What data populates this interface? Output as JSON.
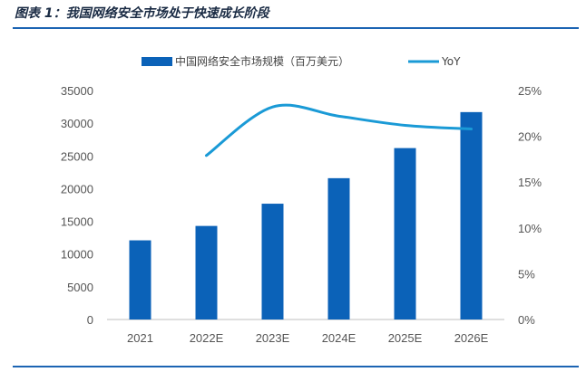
{
  "figure": {
    "title": "图表 1：我国网络安全市场处于快速成长阶段"
  },
  "colors": {
    "bar": "#0b62b8",
    "line": "#1a9ad6",
    "rule": "#1c64b3"
  },
  "chart_data": {
    "type": "bar",
    "categories": [
      "2021",
      "2022E",
      "2023E",
      "2024E",
      "2025E",
      "2026E"
    ],
    "series": [
      {
        "name": "中国网络安全市场规模（百万美元）",
        "type": "bar",
        "axis": "left",
        "values": [
          12100,
          14300,
          17700,
          21600,
          26200,
          31700
        ]
      },
      {
        "name": "YoY",
        "type": "line",
        "axis": "right",
        "values": [
          null,
          0.179,
          0.232,
          0.222,
          0.212,
          0.208
        ]
      }
    ],
    "y_left": {
      "ylim": [
        0,
        35000
      ],
      "ticks": [
        "0",
        "5000",
        "10000",
        "15000",
        "20000",
        "25000",
        "30000",
        "35000"
      ]
    },
    "y_right": {
      "ylim": [
        0,
        0.25
      ],
      "ticks": [
        "0%",
        "5%",
        "10%",
        "15%",
        "20%",
        "25%"
      ]
    },
    "legend": {
      "position": "top",
      "bar_label": "中国网络安全市场规模（百万美元）",
      "line_label": "YoY"
    },
    "grid": false
  }
}
